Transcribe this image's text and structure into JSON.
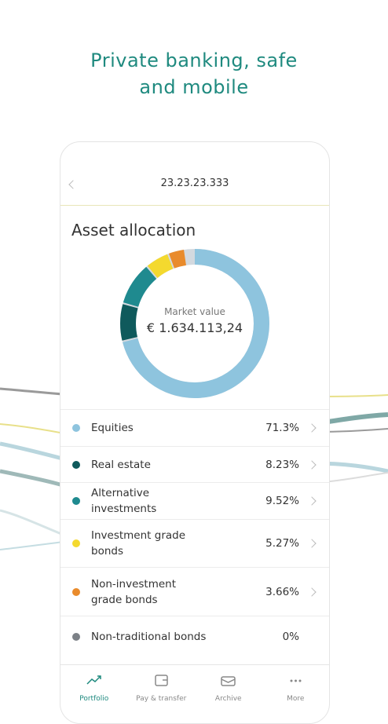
{
  "headline": [
    "Private banking, safe",
    "and mobile"
  ],
  "account": "23.23.23.333",
  "section_title": "Asset allocation",
  "chart_data": {
    "type": "donut",
    "center_label": "Market value",
    "center_value": "€ 1.634.113,24",
    "categories": [
      "Equities",
      "Real estate",
      "Alternative investments",
      "Investment grade bonds",
      "Non-investment grade bonds",
      "Non-traditional bonds"
    ],
    "values": [
      71.3,
      8.23,
      9.52,
      5.27,
      3.66,
      0
    ],
    "value_labels": [
      "71.3%",
      "8.23%",
      "9.52%",
      "5.27%",
      "3.66%",
      "0%"
    ],
    "colors": [
      "#8ec4de",
      "#0f5a5c",
      "#1f8a8f",
      "#f4d92e",
      "#e98b2c",
      "#7c8187"
    ]
  },
  "tabs": [
    "Portfolio",
    "Pay & transfer",
    "Archive",
    "More"
  ]
}
